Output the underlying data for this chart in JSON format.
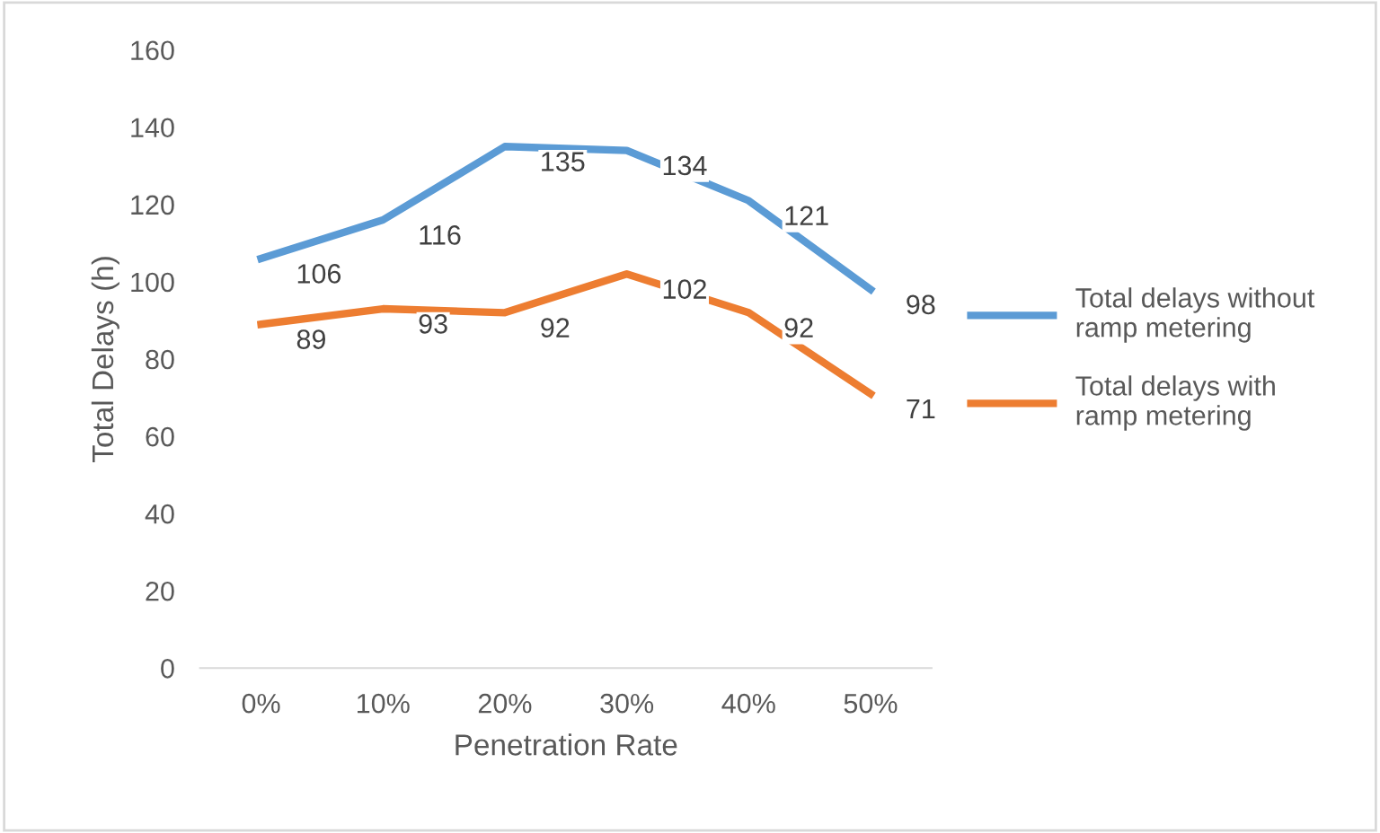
{
  "chart_data": {
    "type": "line",
    "xlabel": "Penetration Rate",
    "ylabel": "Total Delays (h)",
    "categories": [
      "0%",
      "10%",
      "20%",
      "30%",
      "40%",
      "50%"
    ],
    "series": [
      {
        "name": "Total delays without ramp metering",
        "color": "#5b9bd5",
        "values": [
          106,
          116,
          135,
          134,
          121,
          98
        ]
      },
      {
        "name": "Total delays with ramp metering",
        "color": "#ed7d31",
        "values": [
          89,
          93,
          92,
          102,
          92,
          71
        ]
      }
    ],
    "ylim": [
      0,
      160
    ],
    "yticks": [
      0,
      20,
      40,
      60,
      80,
      100,
      120,
      140,
      160
    ],
    "grid": false,
    "legend": "right",
    "data_labels": true,
    "marker": "none",
    "line_style": "solid"
  }
}
